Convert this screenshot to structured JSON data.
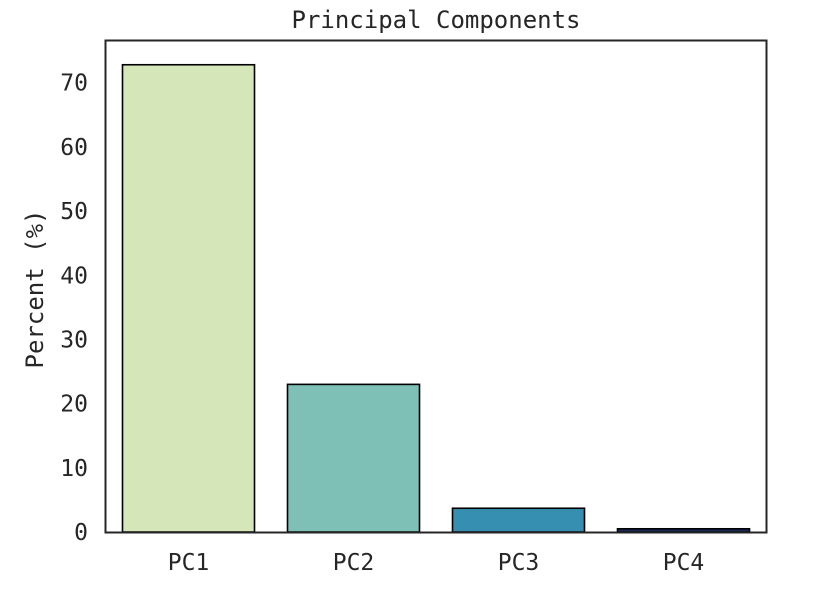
{
  "chart_data": {
    "type": "bar",
    "title": "Principal Components",
    "xlabel": "",
    "ylabel": "Percent (%)",
    "categories": [
      "PC1",
      "PC2",
      "PC3",
      "PC4"
    ],
    "values": [
      72.8,
      23.0,
      3.7,
      0.5
    ],
    "colors": [
      "#d5e6b8",
      "#7fc0b6",
      "#368fb1",
      "#1b2a5b"
    ],
    "ylim": [
      0,
      76.5
    ],
    "yticks": [
      0,
      10,
      20,
      30,
      40,
      50,
      60,
      70
    ],
    "grid": false,
    "edge_color": "#000000"
  }
}
